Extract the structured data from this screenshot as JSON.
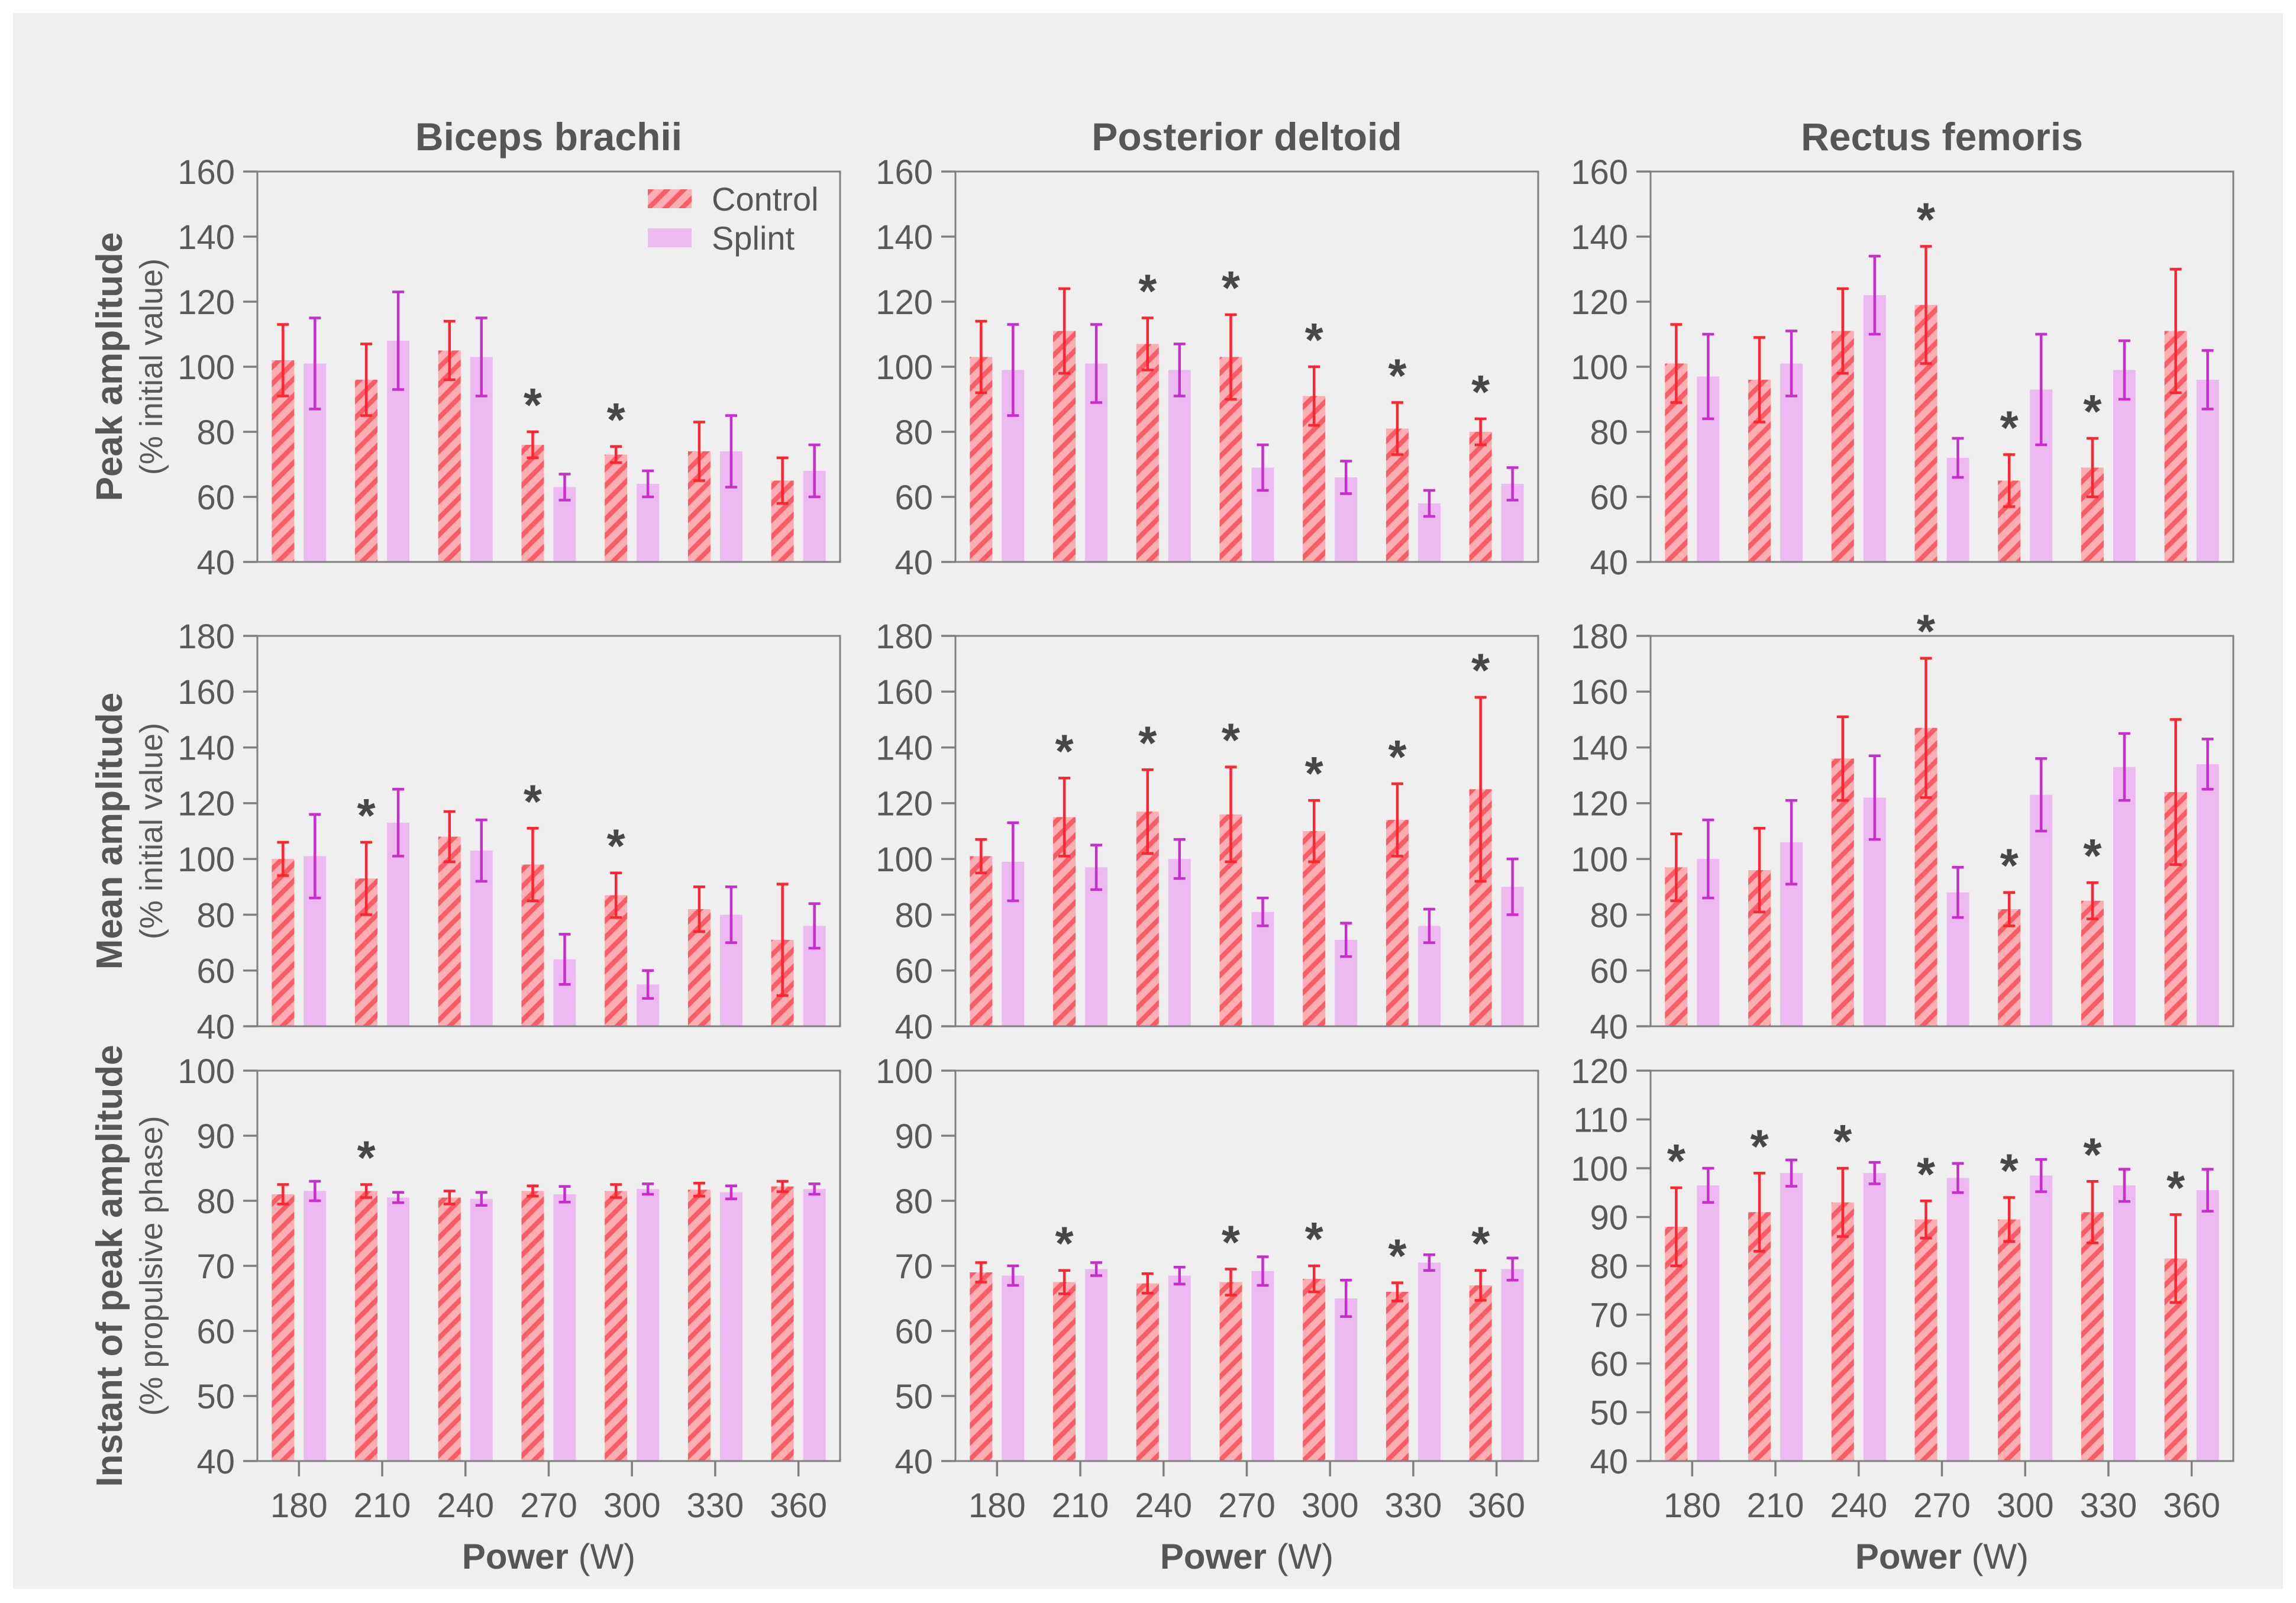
{
  "figure": {
    "page_background": "#ffffff",
    "background": "#efefef",
    "frame_color": "#7f7f7f",
    "title_color": "#565656",
    "tick_label_color": "#595959",
    "star_color": "#474747",
    "star_symbol": "*",
    "xlabel_bold": "Power",
    "xlabel_unit": " (W)",
    "columns": [
      "Biceps brachii",
      "Posterior deltoid",
      "Rectus femoris"
    ],
    "rows": [
      {
        "label": "Peak amplitude",
        "sublabel": "(% initial value)"
      },
      {
        "label": "Mean amplitude",
        "sublabel": "(% initial value)"
      },
      {
        "label": "Instant of peak amplitude",
        "sublabel": "(% propulsive phase)"
      }
    ],
    "legend": {
      "position": "top-right of first panel",
      "entries": [
        {
          "label": "Control",
          "fill": "#fcaeb2",
          "hatch": "#f85c65",
          "hatched": true
        },
        {
          "label": "Splint",
          "fill": "#ecbaf0",
          "hatched": false
        }
      ]
    },
    "series_style": {
      "control": {
        "fill": "#fcaeb2",
        "hatch": "#f85c65",
        "error_color": "#fb2632"
      },
      "splint": {
        "fill": "#ecbaf0",
        "error_color": "#c72ecb"
      }
    }
  },
  "chart_data": [
    {
      "type": "bar",
      "row": "Peak amplitude (% initial value)",
      "title": "Biceps brachii",
      "ylim": [
        40,
        160
      ],
      "ytick_step": 20,
      "grid": false,
      "categories": [
        180,
        210,
        240,
        270,
        300,
        330,
        360
      ],
      "xlabel": "Power (W)",
      "series": [
        {
          "name": "Control",
          "values": [
            102,
            96,
            105,
            76,
            73,
            74,
            65
          ],
          "errors": [
            11,
            11,
            9,
            4,
            2.5,
            9,
            7
          ],
          "sig_at": [
            270,
            300
          ]
        },
        {
          "name": "Splint",
          "values": [
            101,
            108,
            103,
            63,
            64,
            74,
            68
          ],
          "errors": [
            14,
            15,
            12,
            4,
            4,
            11,
            8
          ],
          "sig_at": []
        }
      ]
    },
    {
      "type": "bar",
      "row": "Peak amplitude (% initial value)",
      "title": "Posterior deltoid",
      "ylim": [
        40,
        160
      ],
      "ytick_step": 20,
      "grid": false,
      "categories": [
        180,
        210,
        240,
        270,
        300,
        330,
        360
      ],
      "xlabel": "Power (W)",
      "series": [
        {
          "name": "Control",
          "values": [
            103,
            111,
            107,
            103,
            91,
            81,
            80
          ],
          "errors": [
            11,
            13,
            8,
            13,
            9,
            8,
            4
          ],
          "sig_at": [
            240,
            270,
            300,
            330,
            360
          ]
        },
        {
          "name": "Splint",
          "values": [
            99,
            101,
            99,
            69,
            66,
            58,
            64
          ],
          "errors": [
            14,
            12,
            8,
            7,
            5,
            4,
            5
          ],
          "sig_at": []
        }
      ]
    },
    {
      "type": "bar",
      "row": "Peak amplitude (% initial value)",
      "title": "Rectus femoris",
      "ylim": [
        40,
        160
      ],
      "ytick_step": 20,
      "grid": false,
      "categories": [
        180,
        210,
        240,
        270,
        300,
        330,
        360
      ],
      "xlabel": "Power (W)",
      "series": [
        {
          "name": "Control",
          "values": [
            101,
            96,
            111,
            119,
            65,
            69,
            111
          ],
          "errors": [
            12,
            13,
            13,
            18,
            8,
            9,
            19
          ],
          "sig_at": [
            270,
            300,
            330
          ]
        },
        {
          "name": "Splint",
          "values": [
            97,
            101,
            122,
            72,
            93,
            99,
            96
          ],
          "errors": [
            13,
            10,
            12,
            6,
            17,
            9,
            9
          ],
          "sig_at": []
        }
      ]
    },
    {
      "type": "bar",
      "row": "Mean amplitude (% initial value)",
      "title": "Biceps brachii",
      "ylim": [
        40,
        180
      ],
      "ytick_step": 20,
      "grid": false,
      "categories": [
        180,
        210,
        240,
        270,
        300,
        330,
        360
      ],
      "xlabel": "Power (W)",
      "series": [
        {
          "name": "Control",
          "values": [
            100,
            93,
            108,
            98,
            87,
            82,
            71
          ],
          "errors": [
            6,
            13,
            9,
            13,
            8,
            8,
            20
          ],
          "sig_at": [
            210,
            270,
            300
          ]
        },
        {
          "name": "Splint",
          "values": [
            101,
            113,
            103,
            64,
            55,
            80,
            76
          ],
          "errors": [
            15,
            12,
            11,
            9,
            5,
            10,
            8
          ],
          "sig_at": []
        }
      ]
    },
    {
      "type": "bar",
      "row": "Mean amplitude (% initial value)",
      "title": "Posterior deltoid",
      "ylim": [
        40,
        180
      ],
      "ytick_step": 20,
      "grid": false,
      "categories": [
        180,
        210,
        240,
        270,
        300,
        330,
        360
      ],
      "xlabel": "Power (W)",
      "series": [
        {
          "name": "Control",
          "values": [
            101,
            115,
            117,
            116,
            110,
            114,
            125
          ],
          "errors": [
            6,
            14,
            15,
            17,
            11,
            13,
            33
          ],
          "sig_at": [
            210,
            240,
            270,
            300,
            330,
            360
          ]
        },
        {
          "name": "Splint",
          "values": [
            99,
            97,
            100,
            81,
            71,
            76,
            90
          ],
          "errors": [
            14,
            8,
            7,
            5,
            6,
            6,
            10
          ],
          "sig_at": []
        }
      ]
    },
    {
      "type": "bar",
      "row": "Mean amplitude (% initial value)",
      "title": "Rectus femoris",
      "ylim": [
        40,
        180
      ],
      "ytick_step": 20,
      "grid": false,
      "categories": [
        180,
        210,
        240,
        270,
        300,
        330,
        360
      ],
      "xlabel": "Power (W)",
      "series": [
        {
          "name": "Control",
          "values": [
            97,
            96,
            136,
            147,
            82,
            85,
            124
          ],
          "errors": [
            12,
            15,
            15,
            25,
            6,
            6.5,
            26
          ],
          "sig_at": [
            270,
            300,
            330
          ]
        },
        {
          "name": "Splint",
          "values": [
            100,
            106,
            122,
            88,
            123,
            133,
            134
          ],
          "errors": [
            14,
            15,
            15,
            9,
            13,
            12,
            9
          ],
          "sig_at": []
        }
      ]
    },
    {
      "type": "bar",
      "row": "Instant of peak amplitude (% propulsive phase)",
      "title": "Biceps brachii",
      "ylim": [
        40,
        100
      ],
      "ytick_step": 10,
      "grid": false,
      "categories": [
        180,
        210,
        240,
        270,
        300,
        330,
        360
      ],
      "xlabel": "Power (W)",
      "series": [
        {
          "name": "Control",
          "values": [
            81,
            81.5,
            80.5,
            81.5,
            81.5,
            81.7,
            82.2
          ],
          "errors": [
            1.5,
            1,
            1,
            0.8,
            1,
            1,
            0.8
          ],
          "sig_at": [
            210
          ]
        },
        {
          "name": "Splint",
          "values": [
            81.5,
            80.5,
            80.3,
            81,
            81.8,
            81.3,
            81.8
          ],
          "errors": [
            1.5,
            0.8,
            1,
            1.2,
            0.8,
            1,
            0.8
          ],
          "sig_at": []
        }
      ]
    },
    {
      "type": "bar",
      "row": "Instant of peak amplitude (% propulsive phase)",
      "title": "Posterior deltoid",
      "ylim": [
        40,
        100
      ],
      "ytick_step": 10,
      "grid": false,
      "categories": [
        180,
        210,
        240,
        270,
        300,
        330,
        360
      ],
      "xlabel": "Power (W)",
      "series": [
        {
          "name": "Control",
          "values": [
            69,
            67.5,
            67.3,
            67.5,
            68,
            66,
            67
          ],
          "errors": [
            1.5,
            1.8,
            1.5,
            2,
            2,
            1.4,
            2.3
          ],
          "sig_at": [
            210,
            270,
            300,
            330,
            360
          ]
        },
        {
          "name": "Splint",
          "values": [
            68.5,
            69.5,
            68.5,
            69.2,
            65,
            70.5,
            69.5
          ],
          "errors": [
            1.5,
            1,
            1.3,
            2.2,
            2.8,
            1.2,
            1.7
          ],
          "sig_at": []
        }
      ]
    },
    {
      "type": "bar",
      "row": "Instant of peak amplitude (% propulsive phase)",
      "title": "Rectus femoris",
      "ylim": [
        40,
        120
      ],
      "ytick_step": 10,
      "grid": false,
      "categories": [
        180,
        210,
        240,
        270,
        300,
        330,
        360
      ],
      "xlabel": "Power (W)",
      "series": [
        {
          "name": "Control",
          "values": [
            88,
            91,
            93,
            89.5,
            89.5,
            91,
            81.5
          ],
          "errors": [
            8,
            8,
            7,
            3.8,
            4.5,
            6.3,
            9
          ],
          "sig_at": [
            180,
            210,
            240,
            270,
            300,
            330,
            360
          ]
        },
        {
          "name": "Splint",
          "values": [
            96.5,
            99,
            99,
            98,
            98.5,
            96.5,
            95.5
          ],
          "errors": [
            3.5,
            2.7,
            2.2,
            3,
            3.3,
            3.3,
            4.3
          ],
          "sig_at": []
        }
      ]
    }
  ]
}
